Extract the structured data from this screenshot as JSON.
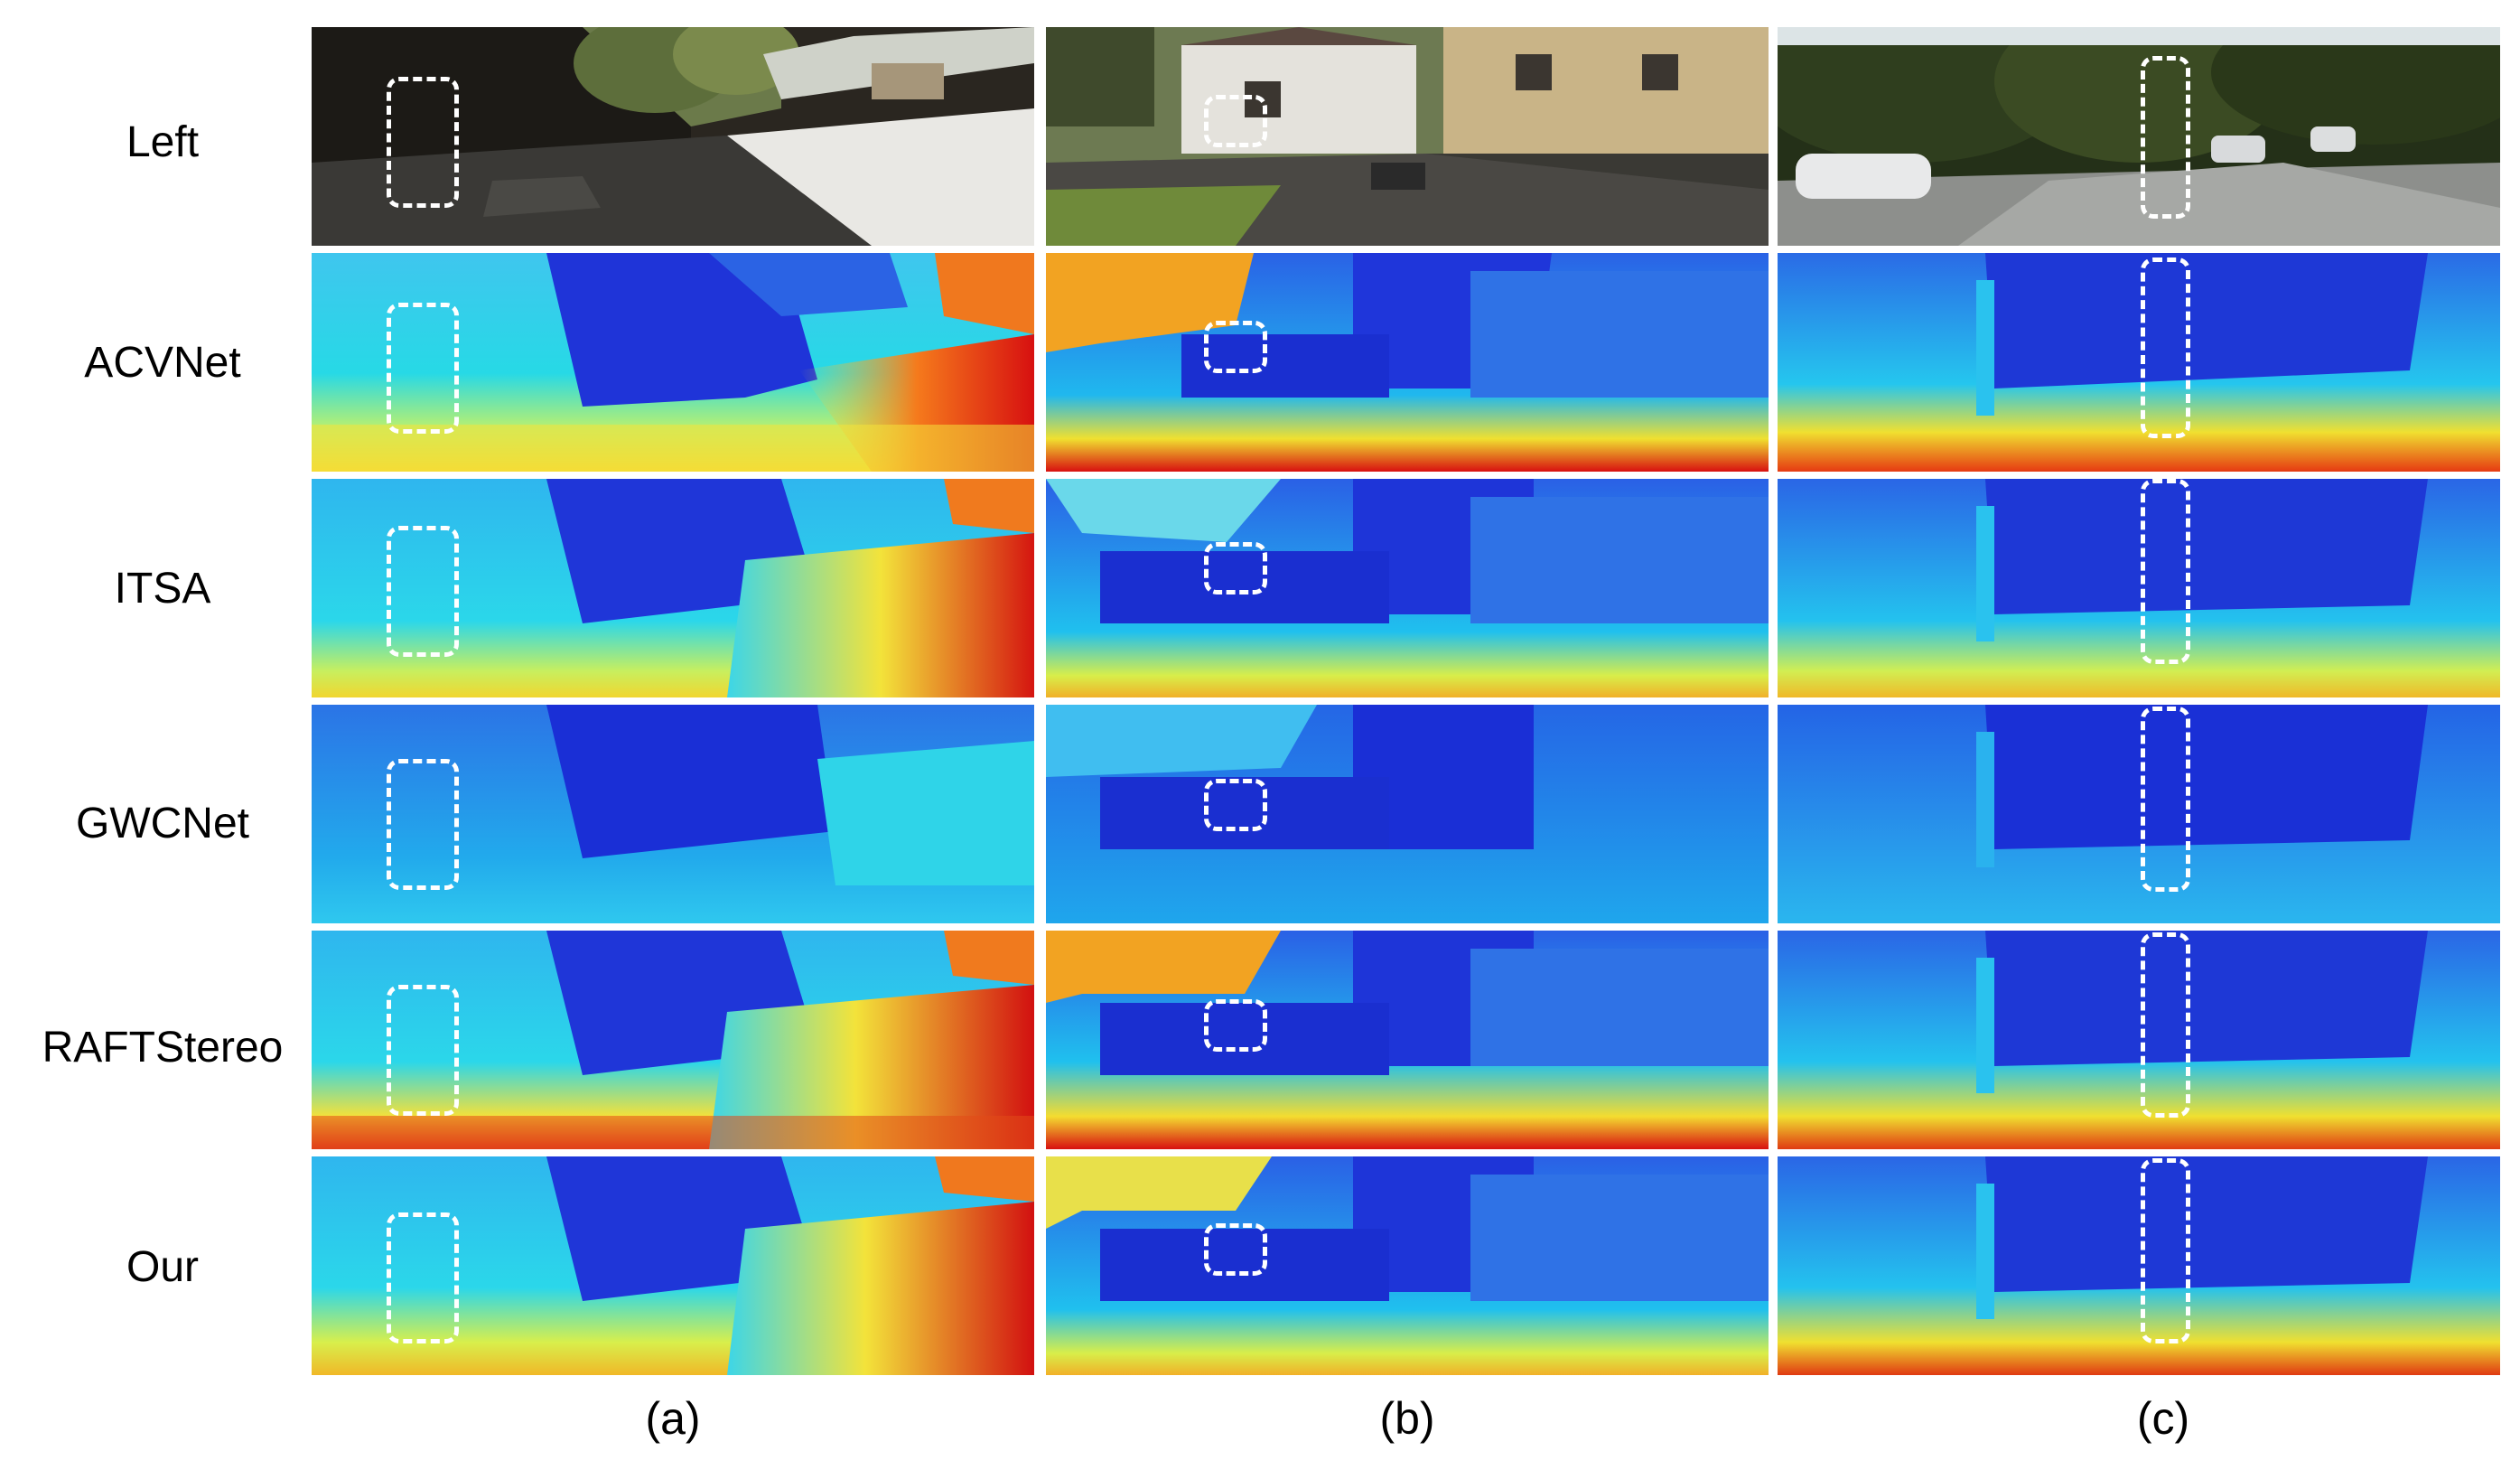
{
  "figure": {
    "row_labels": [
      "Left",
      "ACVNet",
      "ITSA",
      "GWCNet",
      "RAFTStereo",
      "Our"
    ],
    "column_labels": [
      "(a)",
      "(b)",
      "(c)"
    ]
  },
  "colors": {
    "highlight_box": "#ffffff",
    "disparity_far": "#1a2fd6",
    "disparity_mid": "#22c8ec",
    "disparity_near": "#d81010"
  }
}
